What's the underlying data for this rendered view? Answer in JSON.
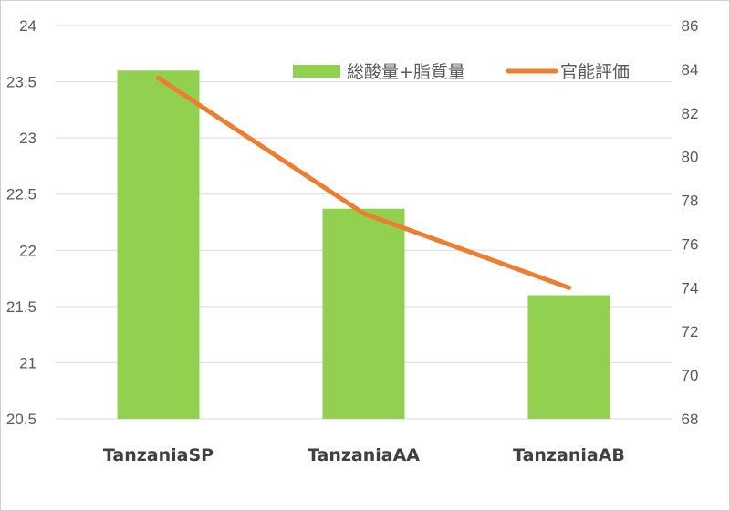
{
  "chart_data": {
    "type": "bar+line",
    "categories": [
      "TanzaniaSP",
      "TanzaniaAA",
      "TanzaniaAB"
    ],
    "series": [
      {
        "name": "総酸量+脂質量",
        "type": "bar",
        "axis": "left",
        "color": "#92d050",
        "values": [
          23.6,
          22.37,
          21.6
        ]
      },
      {
        "name": "官能評価",
        "type": "line",
        "axis": "right",
        "color": "#ed7d31",
        "values": [
          83.6,
          77.4,
          74.0
        ]
      }
    ],
    "y_left": {
      "min": 20.5,
      "max": 24,
      "ticks": [
        "20.5",
        "21",
        "21.5",
        "22",
        "22.5",
        "23",
        "23.5",
        "24"
      ]
    },
    "y_right": {
      "min": 68,
      "max": 86,
      "ticks": [
        "68",
        "70",
        "72",
        "74",
        "76",
        "78",
        "80",
        "82",
        "84",
        "86"
      ]
    },
    "grid": true,
    "legend": "top-right"
  }
}
